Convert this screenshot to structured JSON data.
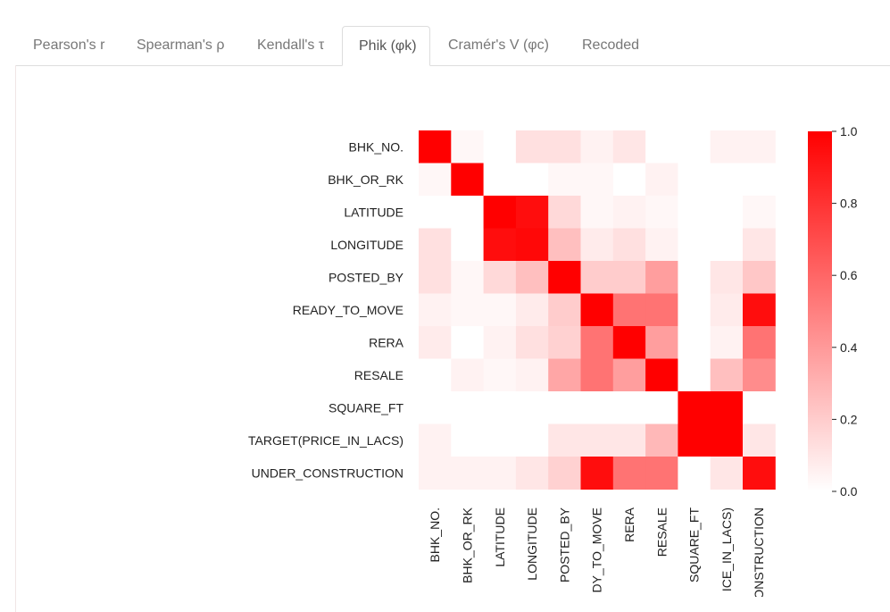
{
  "tabs": [
    {
      "label": "Pearson's r"
    },
    {
      "label": "Spearman's ρ"
    },
    {
      "label": "Kendall's τ"
    },
    {
      "label": "Phik (φk)"
    },
    {
      "label": "Cramér's V (φc)"
    },
    {
      "label": "Recoded"
    }
  ],
  "active_tab": "Phik (φk)",
  "colors": {
    "high": "#ff0000",
    "low": "#ffffff",
    "axis_text": "#222222"
  },
  "chart_data": {
    "type": "heatmap",
    "title": "",
    "xlabel": "",
    "ylabel": "",
    "rows": [
      "BHK_NO.",
      "BHK_OR_RK",
      "LATITUDE",
      "LONGITUDE",
      "POSTED_BY",
      "READY_TO_MOVE",
      "RERA",
      "RESALE",
      "SQUARE_FT",
      "TARGET(PRICE_IN_LACS)",
      "UNDER_CONSTRUCTION"
    ],
    "columns": [
      "BHK_NO.",
      "BHK_OR_RK",
      "LATITUDE",
      "LONGITUDE",
      "POSTED_BY",
      "READY_TO_MOVE",
      "RERA",
      "RESALE",
      "SQUARE_FT",
      "TARGET(PRICE_IN_LACS)",
      "UNDER_CONSTRUCTION"
    ],
    "column_tick_labels_visible": [
      "BHK_NO.",
      "BHK_OR_RK",
      "LATITUDE",
      "LONGITUDE",
      "POSTED_BY",
      "DY_TO_MOVE",
      "RERA",
      "RESALE",
      "SQUARE_FT",
      "ICE_IN_LACS)",
      "ONSTRUCTION"
    ],
    "values": [
      [
        1.0,
        0.03,
        0.0,
        0.12,
        0.12,
        0.05,
        0.1,
        0.0,
        0.0,
        0.05,
        0.05
      ],
      [
        0.03,
        1.0,
        0.0,
        0.0,
        0.03,
        0.03,
        0.0,
        0.05,
        0.0,
        0.0,
        0.0
      ],
      [
        0.0,
        0.0,
        1.0,
        0.95,
        0.15,
        0.03,
        0.05,
        0.03,
        0.0,
        0.0,
        0.03
      ],
      [
        0.12,
        0.0,
        0.95,
        0.97,
        0.25,
        0.08,
        0.12,
        0.05,
        0.0,
        0.0,
        0.1
      ],
      [
        0.12,
        0.03,
        0.15,
        0.25,
        1.0,
        0.2,
        0.2,
        0.38,
        0.0,
        0.1,
        0.22
      ],
      [
        0.05,
        0.03,
        0.03,
        0.08,
        0.2,
        1.0,
        0.55,
        0.55,
        0.0,
        0.08,
        0.95
      ],
      [
        0.08,
        0.0,
        0.05,
        0.12,
        0.18,
        0.55,
        1.0,
        0.38,
        0.0,
        0.05,
        0.55
      ],
      [
        0.0,
        0.05,
        0.03,
        0.05,
        0.35,
        0.55,
        0.38,
        1.0,
        0.0,
        0.25,
        0.45
      ],
      [
        0.0,
        0.0,
        0.0,
        0.0,
        0.0,
        0.0,
        0.0,
        0.0,
        1.0,
        1.0,
        0.0
      ],
      [
        0.05,
        0.0,
        0.0,
        0.0,
        0.1,
        0.1,
        0.1,
        0.28,
        1.0,
        1.0,
        0.1
      ],
      [
        0.05,
        0.05,
        0.05,
        0.1,
        0.18,
        0.95,
        0.55,
        0.55,
        0.0,
        0.1,
        0.95
      ]
    ],
    "colorbar": {
      "range": [
        0.0,
        1.0
      ],
      "ticks": [
        "1.0",
        "0.8",
        "0.6",
        "0.4",
        "0.2",
        "0.0"
      ]
    },
    "grid": false
  }
}
